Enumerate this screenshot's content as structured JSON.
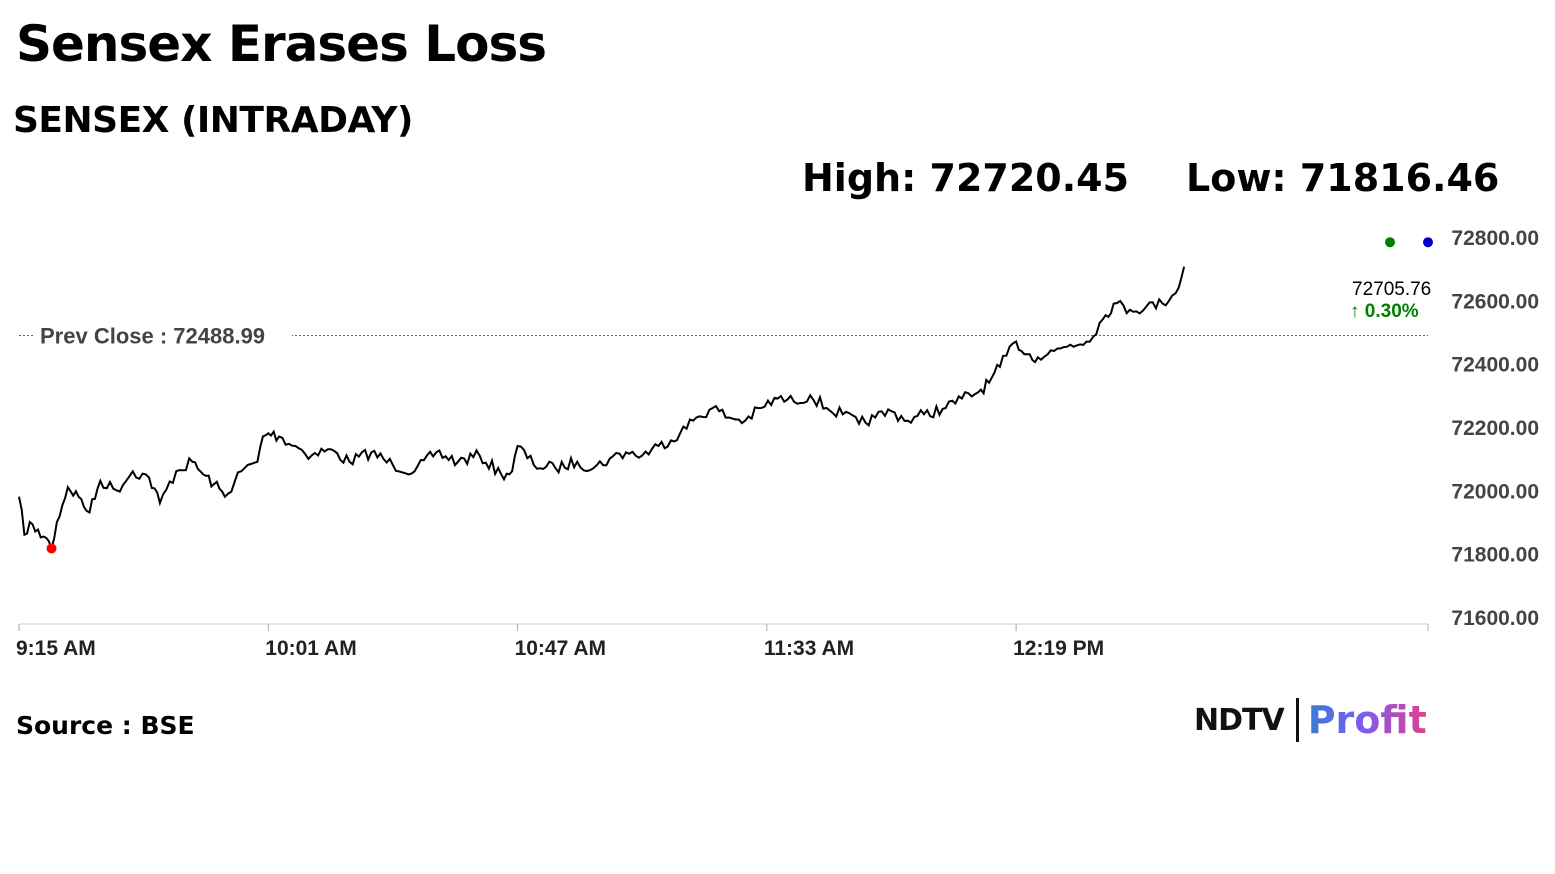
{
  "header": {
    "headline": "Sensex Erases Loss",
    "subtitle": "SENSEX (INTRADAY)",
    "high_text": "High: 72720.45",
    "low_text": "Low: 71816.46"
  },
  "footer": {
    "source": "Source : BSE",
    "brand_ndtv": "NDTV",
    "brand_profit": "Profit"
  },
  "colors": {
    "line": "#000000",
    "prev_close_line": "#c0392b",
    "low_marker": "#ff0000",
    "high_marker": "#008000",
    "last_marker": "#0000cc",
    "change_positive": "#008000"
  },
  "chart_data": {
    "type": "line",
    "x_label_ticks": [
      "9:15 AM",
      "10:01 AM",
      "10:47 AM",
      "11:33 AM",
      "12:19 PM"
    ],
    "x_range_minutes": [
      "9:15 AM",
      "1:35 PM"
    ],
    "y_ticks": [
      "72800.00",
      "72600.00",
      "72400.00",
      "72200.00",
      "72000.00",
      "71800.00",
      "71600.00"
    ],
    "ylim": [
      71600,
      72800
    ],
    "prev_close": 72488.99,
    "prev_close_label": "Prev Close : 72488.99",
    "last_value_label": "72705.76",
    "change_label": "↑ 0.30%",
    "high": 72720.45,
    "low": 71816.46,
    "series": [
      {
        "times": [
          "9:15 AM",
          "9:16 AM",
          "9:17 AM",
          "9:18 AM",
          "9:20 AM",
          "9:21 AM",
          "9:22 AM",
          "9:24 AM",
          "9:26 AM",
          "9:28 AM",
          "9:30 AM",
          "9:33 AM",
          "9:36 AM",
          "9:39 AM",
          "9:41 AM",
          "9:44 AM",
          "9:47 AM",
          "9:49 AM",
          "9:51 AM",
          "9:53 AM",
          "9:56 AM",
          "9:59 AM",
          "10:00 AM",
          "10:01 AM",
          "10:03 AM",
          "10:06 AM",
          "10:09 AM",
          "10:12 AM",
          "10:16 AM",
          "10:20 AM",
          "10:24 AM",
          "10:28 AM",
          "10:32 AM",
          "10:36 AM",
          "10:40 AM",
          "10:44 AM",
          "10:46 AM",
          "10:47 AM",
          "10:50 AM",
          "10:54 AM",
          "10:58 AM",
          "11:01 AM",
          "11:04 AM",
          "11:07 AM",
          "11:10 AM",
          "11:13 AM",
          "11:17 AM",
          "11:20 AM",
          "11:23 AM",
          "11:26 AM",
          "11:29 AM",
          "11:32 AM",
          "11:35 AM",
          "11:38 AM",
          "11:41 AM",
          "11:44 AM",
          "11:47 AM",
          "11:50 AM",
          "11:53 AM",
          "11:56 AM",
          "11:59 AM",
          "12:02 PM",
          "12:06 PM",
          "12:09 PM",
          "12:12 PM",
          "12:14 PM",
          "12:16 PM",
          "12:19 PM",
          "12:21 PM",
          "12:23 PM",
          "12:26 PM",
          "12:29 PM",
          "12:32 PM",
          "12:35 PM",
          "12:37 PM",
          "12:40 PM",
          "12:43 PM",
          "12:46 PM",
          "12:49 PM",
          "12:50 PM"
        ],
        "values": [
          71980,
          71860,
          71900,
          71870,
          71850,
          71816.46,
          71900,
          72010,
          71980,
          71930,
          72030,
          72000,
          72060,
          72040,
          71960,
          72060,
          72090,
          72050,
          72020,
          71980,
          72060,
          72090,
          72170,
          72180,
          72170,
          72140,
          72110,
          72130,
          72090,
          72120,
          72080,
          72060,
          72120,
          72090,
          72110,
          72050,
          72060,
          72140,
          72080,
          72070,
          72090,
          72070,
          72100,
          72120,
          72110,
          72140,
          72180,
          72230,
          72260,
          72230,
          72220,
          72260,
          72290,
          72280,
          72300,
          72260,
          72240,
          72210,
          72230,
          72250,
          72220,
          72240,
          72260,
          72290,
          72310,
          72340,
          72390,
          72470,
          72430,
          72420,
          72440,
          72460,
          72470,
          72540,
          72590,
          72570,
          72580,
          72590,
          72640,
          72705.76
        ]
      }
    ]
  }
}
